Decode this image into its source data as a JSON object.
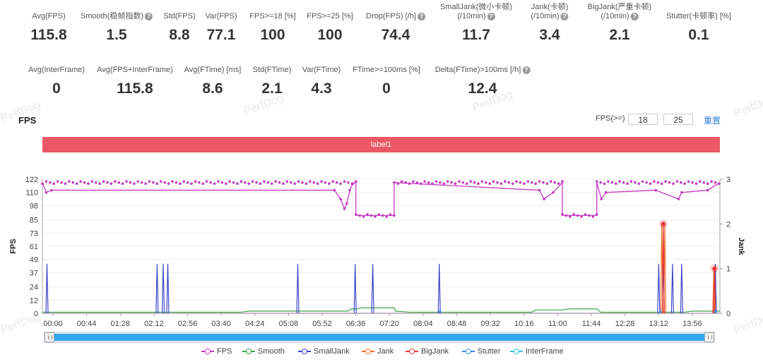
{
  "stats_row1": [
    {
      "label": "Avg(FPS)",
      "value": "115.8",
      "help": false,
      "cx": 69
    },
    {
      "label": "Smooth(稳帧指数)",
      "value": "1.5",
      "help": true,
      "cx": 165
    },
    {
      "label": "Std(FPS)",
      "value": "8.8",
      "help": false,
      "cx": 254
    },
    {
      "label": "Var(FPS)",
      "value": "77.1",
      "help": false,
      "cx": 313
    },
    {
      "label": "FPS>=18 [%]",
      "value": "100",
      "help": false,
      "cx": 386
    },
    {
      "label": "FPS>=25 [%]",
      "value": "100",
      "help": false,
      "cx": 467
    },
    {
      "label": "Drop(FPS) [/h]",
      "value": "74.4",
      "help": true,
      "cx": 560
    },
    {
      "label": "SmallJank(微小卡顿)\n(/10min)",
      "value": "11.7",
      "help": true,
      "cx": 674
    },
    {
      "label": "Jank(卡顿)\n(/10min)",
      "value": "3.4",
      "help": true,
      "cx": 778
    },
    {
      "label": "BigJank(严重卡顿)\n(/10min)",
      "value": "2.1",
      "help": true,
      "cx": 877
    },
    {
      "label": "Stutter(卡顿率) [%]",
      "value": "0.1",
      "help": false,
      "cx": 989
    }
  ],
  "stats_row2": [
    {
      "label": "Avg(InterFrame)",
      "value": "0",
      "help": false,
      "cx": 80
    },
    {
      "label": "Avg(FPS+InterFrame)",
      "value": "115.8",
      "help": false,
      "cx": 191
    },
    {
      "label": "Avg(FTime) [ms]",
      "value": "8.6",
      "help": false,
      "cx": 301
    },
    {
      "label": "Std(FTime)",
      "value": "2.1",
      "help": false,
      "cx": 385
    },
    {
      "label": "Var(FTime)",
      "value": "4.3",
      "help": false,
      "cx": 455
    },
    {
      "label": "FTime>=100ms [%]",
      "value": "0",
      "help": false,
      "cx": 547
    },
    {
      "label": "Delta(FTime)>100ms [/h]",
      "value": "12.4",
      "help": true,
      "cx": 683
    }
  ],
  "chart_header": {
    "title": "FPS",
    "threshold_label": "FPS(>=)",
    "threshold_1": "18",
    "threshold_2": "25",
    "reset_label": "重置",
    "band_label": "label1"
  },
  "watermark": "PerfDog",
  "chart_data": {
    "type": "line",
    "title": "FPS",
    "ylabel": "FPS",
    "y2label": "Jank",
    "ylim": [
      0,
      122
    ],
    "y2lim": [
      0,
      3
    ],
    "y_ticks": [
      0,
      12,
      24,
      37,
      49,
      61,
      73,
      85,
      98,
      110,
      122
    ],
    "y2_ticks": [
      0,
      1,
      2,
      3
    ],
    "x_ticks": [
      "00:00",
      "00:44",
      "01:28",
      "02:12",
      "02:56",
      "03:40",
      "04:24",
      "05:08",
      "05:52",
      "06:36",
      "07:20",
      "08:04",
      "08:48",
      "09:32",
      "10:16",
      "11:00",
      "11:44",
      "12:28",
      "13:12",
      "13:56"
    ],
    "x_range_sec": [
      0,
      886
    ],
    "grid": true,
    "legend_position": "bottom",
    "series": [
      {
        "name": "FPS",
        "color": "#c33bc0",
        "axis": "left",
        "segments": [
          {
            "from": 0,
            "to": 410,
            "value": 119
          },
          {
            "from": 410,
            "to": 460,
            "value": 89
          },
          {
            "from": 460,
            "to": 680,
            "value": 119
          },
          {
            "from": 680,
            "to": 725,
            "value": 89
          },
          {
            "from": 725,
            "to": 886,
            "value": 119
          }
        ],
        "dips": [
          [
            5,
            110
          ],
          [
            12,
            112
          ],
          [
            382,
            112
          ],
          [
            390,
            104
          ],
          [
            395,
            95
          ],
          [
            398,
            100
          ],
          [
            402,
            112
          ],
          [
            406,
            118
          ],
          [
            650,
            112
          ],
          [
            656,
            104
          ],
          [
            668,
            110
          ],
          [
            731,
            104
          ],
          [
            737,
            110
          ],
          [
            802,
            112
          ],
          [
            832,
            104
          ],
          [
            836,
            110
          ],
          [
            870,
            112
          ]
        ]
      },
      {
        "name": "Smooth",
        "color": "#3ba34a",
        "axis": "left",
        "steps": [
          [
            0,
            1
          ],
          [
            260,
            1
          ],
          [
            270,
            2
          ],
          [
            400,
            2
          ],
          [
            404,
            4
          ],
          [
            412,
            4
          ],
          [
            416,
            5
          ],
          [
            460,
            5
          ],
          [
            462,
            2
          ],
          [
            480,
            1
          ],
          [
            640,
            1
          ],
          [
            645,
            3
          ],
          [
            680,
            3
          ],
          [
            690,
            4
          ],
          [
            725,
            4
          ],
          [
            730,
            1
          ],
          [
            840,
            1
          ],
          [
            850,
            2
          ],
          [
            886,
            2
          ]
        ]
      },
      {
        "name": "SmallJank",
        "color": "#3f46c8",
        "axis": "left",
        "spikes": [
          [
            6,
            45
          ],
          [
            150,
            45
          ],
          [
            158,
            45
          ],
          [
            164,
            45
          ],
          [
            334,
            45
          ],
          [
            409,
            45
          ],
          [
            432,
            45
          ],
          [
            519,
            45
          ],
          [
            806,
            45
          ],
          [
            812,
            45
          ],
          [
            824,
            45
          ],
          [
            836,
            45
          ],
          [
            880,
            45
          ]
        ]
      },
      {
        "name": "Jank",
        "color": "#f0732d",
        "axis": "right",
        "spikes": [
          [
            810,
            2
          ],
          [
            814,
            2
          ],
          [
            878,
            1
          ]
        ]
      },
      {
        "name": "BigJank",
        "color": "#e8353b",
        "axis": "right",
        "spikes": [
          [
            812,
            2
          ],
          [
            879,
            1
          ]
        ]
      },
      {
        "name": "Stutter",
        "color": "#3a8fe0",
        "axis": "left",
        "spikes": [
          [
            520,
            4
          ],
          [
            808,
            3
          ],
          [
            880,
            3
          ]
        ]
      },
      {
        "name": "InterFrame",
        "color": "#33c3d6",
        "axis": "left",
        "spikes": []
      }
    ]
  },
  "legend": [
    {
      "name": "FPS",
      "color": "#c33bc0",
      "x": 285
    },
    {
      "name": "Smooth",
      "color": "#3ba34a",
      "x": 343
    },
    {
      "name": "SmallJank",
      "color": "#3f46c8",
      "x": 422
    },
    {
      "name": "Jank",
      "color": "#f0732d",
      "x": 512
    },
    {
      "name": "BigJank",
      "color": "#e8353b",
      "x": 574
    },
    {
      "name": "Stutter",
      "color": "#3a8fe0",
      "x": 654
    },
    {
      "name": "InterFrame",
      "color": "#33c3d6",
      "x": 722
    }
  ]
}
